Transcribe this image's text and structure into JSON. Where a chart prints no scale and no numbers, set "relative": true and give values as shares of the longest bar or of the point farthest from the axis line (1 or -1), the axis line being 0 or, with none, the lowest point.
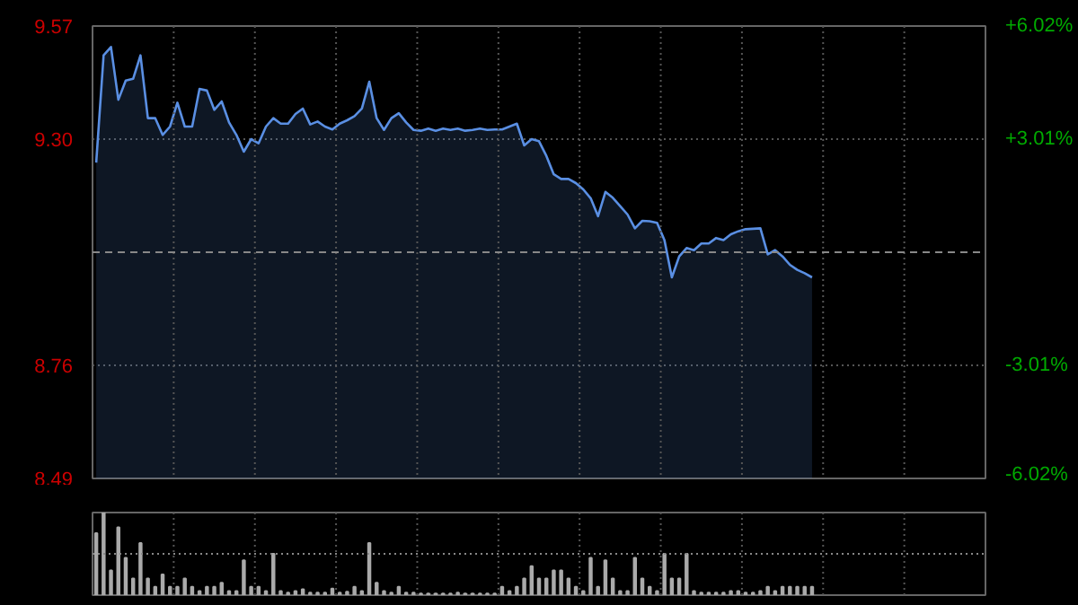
{
  "chart_data": [
    {
      "type": "area",
      "categories": [
        null,
        null,
        null,
        null,
        null,
        null,
        null,
        null,
        null,
        null,
        null,
        null,
        null,
        null,
        null,
        null,
        null,
        null,
        null,
        null,
        null,
        null,
        null,
        null,
        null,
        null,
        null,
        null,
        null,
        null,
        null,
        null,
        null,
        null,
        null,
        null,
        null,
        null,
        null,
        null,
        null,
        null,
        null,
        null,
        null,
        null,
        null,
        null,
        null,
        null,
        null,
        null,
        null,
        null,
        null,
        null,
        null,
        null,
        null,
        null,
        null,
        null,
        null,
        null,
        null,
        null,
        null,
        null,
        null,
        null,
        null,
        null,
        null,
        null,
        null,
        null,
        null,
        null,
        null,
        null,
        null,
        null,
        null,
        null,
        null,
        null,
        null,
        null,
        null,
        null,
        null,
        null,
        null,
        null,
        null,
        null,
        null,
        null,
        null,
        null,
        null,
        null,
        null,
        null,
        null,
        null,
        null,
        null,
        null,
        null,
        null,
        null,
        null,
        null,
        null,
        null,
        null,
        null,
        null,
        null,
        null
      ],
      "series": [
        {
          "color": "#5a8fe3",
          "values": [
            9.244,
            9.5,
            9.52,
            9.394,
            9.44,
            9.444,
            9.5,
            9.35,
            9.35,
            9.31,
            9.33,
            9.387,
            9.33,
            9.33,
            9.42,
            9.416,
            9.37,
            9.39,
            9.34,
            9.31,
            9.27,
            9.3,
            9.29,
            9.33,
            9.35,
            9.337,
            9.337,
            9.36,
            9.373,
            9.335,
            9.342,
            9.33,
            9.323,
            9.337,
            9.345,
            9.355,
            9.373,
            9.437,
            9.35,
            9.322,
            9.35,
            9.362,
            9.34,
            9.322,
            9.32,
            9.325,
            9.32,
            9.325,
            9.322,
            9.325,
            9.32,
            9.322,
            9.325,
            9.322,
            9.323,
            9.323,
            9.33,
            9.337,
            9.285,
            9.3,
            9.295,
            9.26,
            9.216,
            9.205,
            9.205,
            9.195,
            9.18,
            9.159,
            9.116,
            9.174,
            9.16,
            9.14,
            9.12,
            9.087,
            9.105,
            9.104,
            9.1,
            9.059,
            8.97,
            9.02,
            9.04,
            9.035,
            9.051,
            9.051,
            9.064,
            9.059,
            9.073,
            9.08,
            9.085,
            9.086,
            9.087,
            9.025,
            9.035,
            9.02,
            9.0,
            8.988,
            8.98,
            8.97,
            null,
            null,
            null,
            null,
            null,
            null,
            null,
            null,
            null,
            null,
            null,
            null,
            null,
            null,
            null,
            null,
            null,
            null,
            null,
            null,
            null,
            null,
            null
          ]
        }
      ],
      "ylim": [
        8.49,
        9.57
      ],
      "yticks": [
        9.57,
        {
          "value": 9.3,
          "label": "9.30"
        },
        8.76,
        8.49
      ],
      "y2lim": [
        -6.02,
        6.02
      ],
      "y2ticks": [
        {
          "value": 6.02,
          "label": "+6.02%"
        },
        {
          "value": 3.01,
          "label": "+3.01%"
        },
        {
          "value": -3.01,
          "label": "-3.01%"
        },
        {
          "value": -6.02,
          "label": "-6.02%"
        }
      ],
      "ref_lines": [
        {
          "axis": "y",
          "value": 9.03,
          "line_style": "dashed"
        }
      ],
      "grid": true
    },
    {
      "type": "bar",
      "relative": true,
      "color": "#aaaaaa",
      "categories": [
        null,
        null,
        null,
        null,
        null,
        null,
        null,
        null,
        null,
        null,
        null,
        null,
        null,
        null,
        null,
        null,
        null,
        null,
        null,
        null,
        null,
        null,
        null,
        null,
        null,
        null,
        null,
        null,
        null,
        null,
        null,
        null,
        null,
        null,
        null,
        null,
        null,
        null,
        null,
        null,
        null,
        null,
        null,
        null,
        null,
        null,
        null,
        null,
        null,
        null,
        null,
        null,
        null,
        null,
        null,
        null,
        null,
        null,
        null,
        null,
        null,
        null,
        null,
        null,
        null,
        null,
        null,
        null,
        null,
        null,
        null,
        null,
        null,
        null,
        null,
        null,
        null,
        null,
        null,
        null,
        null,
        null,
        null,
        null,
        null,
        null,
        null,
        null,
        null,
        null,
        null,
        null,
        null,
        null,
        null,
        null,
        null,
        null,
        null,
        null,
        null,
        null,
        null,
        null,
        null,
        null,
        null,
        null,
        null,
        null,
        null,
        null,
        null,
        null,
        null,
        null,
        null,
        null,
        null,
        null,
        null
      ],
      "values": [
        0.75,
        1.0,
        0.3,
        0.82,
        0.45,
        0.2,
        0.63,
        0.2,
        0.1,
        0.25,
        0.1,
        0.1,
        0.2,
        0.1,
        0.05,
        0.1,
        0.1,
        0.15,
        0.05,
        0.05,
        0.42,
        0.1,
        0.1,
        0.05,
        0.5,
        0.05,
        0.03,
        0.05,
        0.07,
        0.03,
        0.03,
        0.03,
        0.08,
        0.03,
        0.04,
        0.1,
        0.05,
        0.63,
        0.15,
        0.05,
        0.03,
        0.1,
        0.03,
        0.03,
        0.02,
        0.02,
        0.02,
        0.02,
        0.02,
        0.03,
        0.02,
        0.02,
        0.02,
        0.02,
        0.02,
        0.1,
        0.05,
        0.1,
        0.2,
        0.35,
        0.2,
        0.2,
        0.3,
        0.3,
        0.2,
        0.1,
        0.05,
        0.45,
        0.1,
        0.42,
        0.2,
        0.05,
        0.05,
        0.45,
        0.2,
        0.1,
        0.05,
        0.5,
        0.2,
        0.2,
        0.5,
        0.05,
        0.03,
        0.03,
        0.03,
        0.03,
        0.05,
        0.05,
        0.03,
        0.03,
        0.05,
        0.1,
        0.05,
        0.1,
        0.1,
        0.1,
        0.1,
        0.1,
        null,
        null,
        null,
        null,
        null,
        null,
        null,
        null,
        null,
        null,
        null,
        null,
        null,
        null,
        null,
        null,
        null,
        null,
        null,
        null,
        null,
        null,
        null
      ],
      "ref_lines": [
        {
          "axis": "y",
          "value": 0.5,
          "line_style": "dotted"
        }
      ],
      "grid": true
    }
  ]
}
